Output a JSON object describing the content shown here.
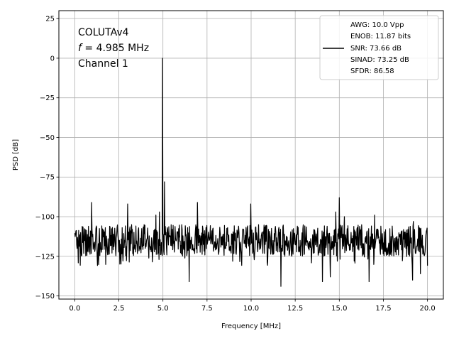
{
  "chart_data": {
    "type": "line",
    "xlabel": "Frequency [MHz]",
    "ylabel": "PSD [dB]",
    "xlim": [
      -0.9,
      20.9
    ],
    "ylim": [
      -152,
      30
    ],
    "xticks": [
      0.0,
      2.5,
      5.0,
      7.5,
      10.0,
      12.5,
      15.0,
      17.5,
      20.0
    ],
    "xtick_labels": [
      "0.0",
      "2.5",
      "5.0",
      "7.5",
      "10.0",
      "12.5",
      "15.0",
      "17.5",
      "20.0"
    ],
    "yticks": [
      25,
      0,
      -25,
      -50,
      -75,
      -100,
      -125,
      -150
    ],
    "ytick_labels": [
      "25",
      "0",
      "−25",
      "−50",
      "−75",
      "−100",
      "−125",
      "−150"
    ],
    "grid": true,
    "legend_position": "top-right",
    "annotation": {
      "line1": "COLUTAv4",
      "line2_var": "f",
      "line2_rest": " = 4.985 MHz",
      "line3": "Channel 1"
    },
    "legend": {
      "lines": [
        "AWG: 10.0 Vpp",
        "ENOB: 11.87 bits",
        "SNR: 73.66 dB",
        "SINAD: 73.25 dB",
        "SFDR: 86.58"
      ]
    },
    "line_color": "#000000",
    "noise_floor": {
      "mean": -115,
      "typical_range": [
        -125,
        -105
      ]
    },
    "peaks": [
      {
        "x": 4.985,
        "y": 0
      },
      {
        "x": 0.95,
        "y": -91
      },
      {
        "x": 3.0,
        "y": -92
      },
      {
        "x": 4.8,
        "y": -97
      },
      {
        "x": 4.6,
        "y": -99
      },
      {
        "x": 5.1,
        "y": -78
      },
      {
        "x": 6.95,
        "y": -91
      },
      {
        "x": 9.97,
        "y": -92
      },
      {
        "x": 14.5,
        "y": -100
      },
      {
        "x": 14.8,
        "y": -97
      },
      {
        "x": 15.0,
        "y": -88
      },
      {
        "x": 15.3,
        "y": -100
      },
      {
        "x": 17.0,
        "y": -99
      },
      {
        "x": 19.2,
        "y": -103
      }
    ],
    "dips": [
      {
        "x": 6.5,
        "y": -141
      },
      {
        "x": 11.7,
        "y": -144
      },
      {
        "x": 14.05,
        "y": -141
      },
      {
        "x": 14.5,
        "y": -138
      },
      {
        "x": 16.7,
        "y": -141
      },
      {
        "x": 19.15,
        "y": -140
      },
      {
        "x": 19.6,
        "y": -136
      }
    ]
  }
}
